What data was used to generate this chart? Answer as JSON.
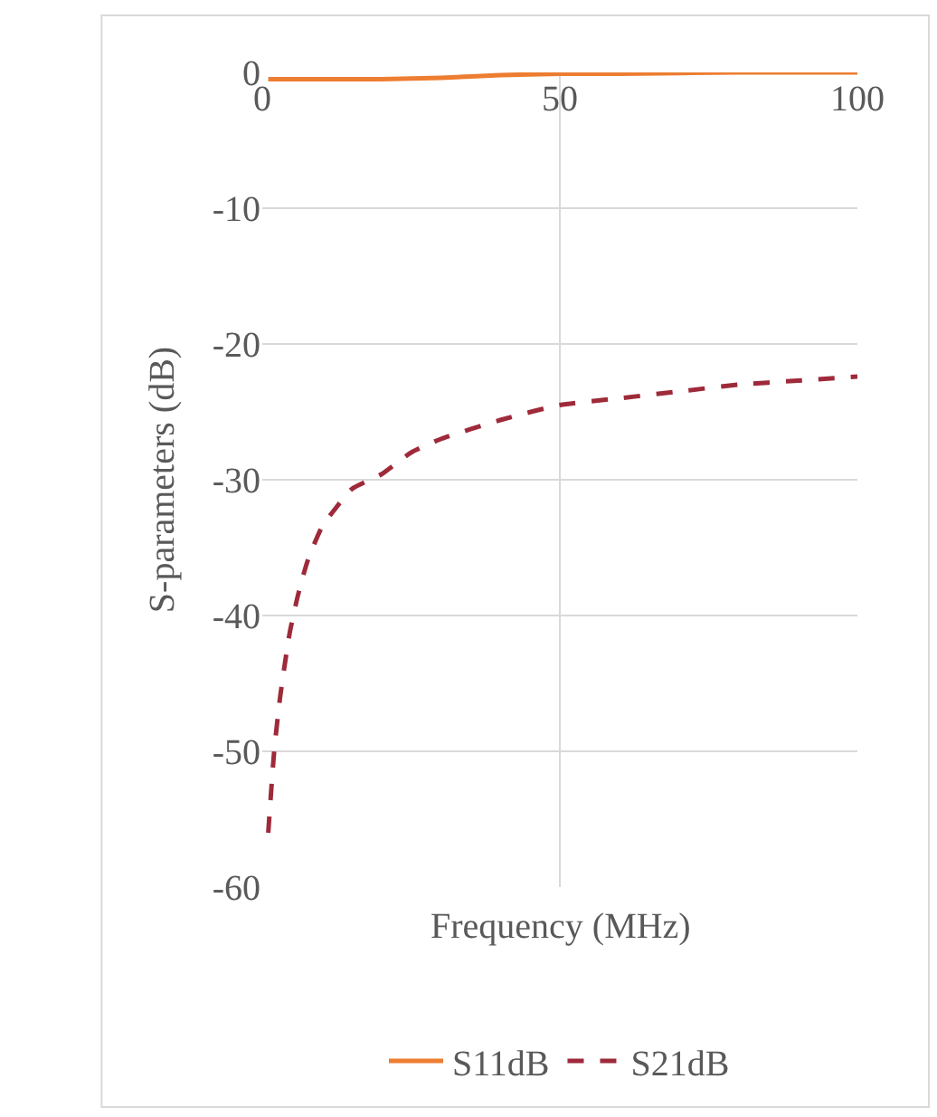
{
  "chart_data": {
    "type": "line",
    "xlabel": "Frequency (MHz)",
    "ylabel": "S-parameters (dB)",
    "xlim": [
      0,
      100
    ],
    "xticks": [
      0,
      50,
      100
    ],
    "ylim": [
      -60,
      0
    ],
    "yticks": [
      -60,
      -50,
      -40,
      -30,
      -20,
      -10,
      0
    ],
    "grid": true,
    "legend": "bottom",
    "marker": "none",
    "series": [
      {
        "name": "S11dB",
        "color": "#ed7d31",
        "line_style": "solid",
        "x": [
          1,
          10,
          20,
          30,
          40,
          50,
          60,
          80,
          100
        ],
        "values": [
          -0.5,
          -0.5,
          -0.5,
          -0.4,
          -0.2,
          -0.1,
          -0.1,
          0,
          0
        ]
      },
      {
        "name": "S21dB",
        "color": "#9e2a3a",
        "line_style": "dashed",
        "x": [
          1,
          2,
          3,
          4.6,
          6,
          7.6,
          10,
          12.5,
          15,
          20,
          25,
          30,
          40,
          50,
          60,
          70,
          80,
          90,
          100
        ],
        "values": [
          -56,
          -50,
          -46,
          -41.3,
          -38.5,
          -36,
          -33.5,
          -32,
          -30.7,
          -29.6,
          -28,
          -27,
          -25.6,
          -24.5,
          -24,
          -23.5,
          -23,
          -22.7,
          -22.4
        ]
      }
    ]
  }
}
